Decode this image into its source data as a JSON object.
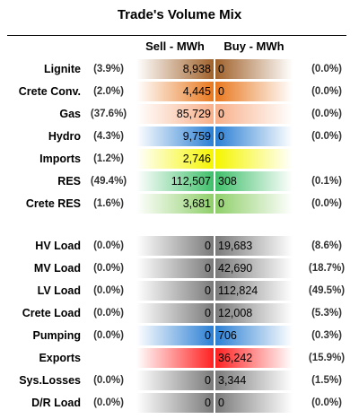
{
  "title": "Trade's Volume Mix",
  "headers": {
    "sell": "Sell - MWh",
    "buy": "Buy - MWh"
  },
  "colors": {
    "brown": "#a0612a",
    "orange": "#e8781e",
    "peach": "#f8b08a",
    "blue": "#2a7fd4",
    "yellow": "#f5f500",
    "green": "#3fbf6a",
    "lightgreen": "#8fcf6a",
    "gray": "#7a7a7a",
    "red": "#ff2020"
  },
  "rows": [
    {
      "label": "Lignite",
      "sell_pct": "(3.9%)",
      "sell": "8,938",
      "buy": "0",
      "buy_pct": "(0.0%)",
      "color": "brown"
    },
    {
      "label": "Crete Conv.",
      "sell_pct": "(2.0%)",
      "sell": "4,445",
      "buy": "0",
      "buy_pct": "(0.0%)",
      "color": "orange"
    },
    {
      "label": "Gas",
      "sell_pct": "(37.6%)",
      "sell": "85,729",
      "buy": "0",
      "buy_pct": "(0.0%)",
      "color": "peach"
    },
    {
      "label": "Hydro",
      "sell_pct": "(4.3%)",
      "sell": "9,759",
      "buy": "0",
      "buy_pct": "(0.0%)",
      "color": "blue"
    },
    {
      "label": "Imports",
      "sell_pct": "(1.2%)",
      "sell": "2,746",
      "buy": "",
      "buy_pct": "",
      "color": "yellow"
    },
    {
      "label": "RES",
      "sell_pct": "(49.4%)",
      "sell": "112,507",
      "buy": "308",
      "buy_pct": "(0.1%)",
      "color": "green"
    },
    {
      "label": "Crete RES",
      "sell_pct": "(1.6%)",
      "sell": "3,681",
      "buy": "0",
      "buy_pct": "(0.0%)",
      "color": "lightgreen"
    },
    {
      "label": "HV Load",
      "sell_pct": "(0.0%)",
      "sell": "0",
      "buy": "19,683",
      "buy_pct": "(8.6%)",
      "color": "gray"
    },
    {
      "label": "MV Load",
      "sell_pct": "(0.0%)",
      "sell": "0",
      "buy": "42,690",
      "buy_pct": "(18.7%)",
      "color": "gray"
    },
    {
      "label": "LV Load",
      "sell_pct": "(0.0%)",
      "sell": "0",
      "buy": "112,824",
      "buy_pct": "(49.5%)",
      "color": "gray"
    },
    {
      "label": "Crete Load",
      "sell_pct": "(0.0%)",
      "sell": "0",
      "buy": "12,008",
      "buy_pct": "(5.3%)",
      "color": "gray"
    },
    {
      "label": "Pumping",
      "sell_pct": "(0.0%)",
      "sell": "0",
      "buy": "706",
      "buy_pct": "(0.3%)",
      "color": "blue"
    },
    {
      "label": "Exports",
      "sell_pct": "",
      "sell": "",
      "buy": "36,242",
      "buy_pct": "(15.9%)",
      "color": "red"
    },
    {
      "label": "Sys.Losses",
      "sell_pct": "(0.0%)",
      "sell": "0",
      "buy": "3,344",
      "buy_pct": "(1.5%)",
      "color": "gray"
    },
    {
      "label": "D/R Load",
      "sell_pct": "(0.0%)",
      "sell": "0",
      "buy": "0",
      "buy_pct": "(0.0%)",
      "color": "gray"
    }
  ]
}
